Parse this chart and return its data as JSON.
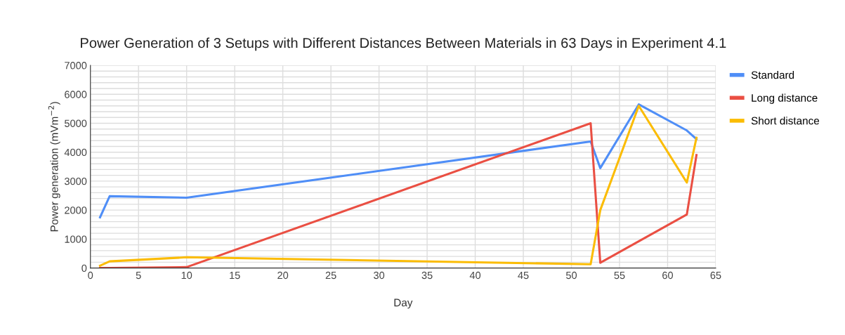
{
  "chart_data": {
    "type": "line",
    "title": "Power Generation of 3 Setups with Different Distances Between Materials in 63 Days in Experiment 4.1",
    "xlabel": "Day",
    "ylabel": "Power generation (mVm$^{−2}$)",
    "x": [
      1,
      2,
      10,
      52,
      53,
      57,
      62,
      63
    ],
    "series": [
      {
        "name": "Standard",
        "color": "#4f8ef7",
        "values": [
          1750,
          2480,
          2430,
          4370,
          3450,
          5650,
          4750,
          4450
        ]
      },
      {
        "name": "Long distance",
        "color": "#ea4f43",
        "x": [
          1,
          2,
          10,
          52,
          53,
          62,
          63
        ],
        "values": [
          0,
          0,
          30,
          5000,
          180,
          1850,
          3900
        ]
      },
      {
        "name": "Short distance",
        "color": "#fbbc04",
        "values": [
          80,
          230,
          370,
          130,
          2000,
          5600,
          2950,
          4500
        ]
      }
    ],
    "xlim": [
      0,
      65
    ],
    "xticks": [
      0,
      5,
      10,
      15,
      20,
      25,
      30,
      35,
      40,
      45,
      50,
      55,
      60,
      65
    ],
    "ylim": [
      0,
      7000
    ],
    "yticks": [
      0,
      {
        "value": 200,
        "label": null
      },
      {
        "value": 400,
        "label": null
      },
      {
        "value": 600,
        "label": null
      },
      {
        "value": 800,
        "label": null
      },
      1000,
      {
        "value": 1200,
        "label": null
      },
      {
        "value": 1400,
        "label": null
      },
      {
        "value": 1600,
        "label": null
      },
      {
        "value": 1800,
        "label": null
      },
      2000,
      {
        "value": 2200,
        "label": null
      },
      {
        "value": 2400,
        "label": null
      },
      {
        "value": 2600,
        "label": null
      },
      {
        "value": 2800,
        "label": null
      },
      3000,
      {
        "value": 3200,
        "label": null
      },
      {
        "value": 3400,
        "label": null
      },
      {
        "value": 3600,
        "label": null
      },
      {
        "value": 3800,
        "label": null
      },
      4000,
      {
        "value": 4200,
        "label": null
      },
      {
        "value": 4400,
        "label": null
      },
      {
        "value": 4600,
        "label": null
      },
      {
        "value": 4800,
        "label": null
      },
      5000,
      {
        "value": 5200,
        "label": null
      },
      {
        "value": 5400,
        "label": null
      },
      {
        "value": 5600,
        "label": null
      },
      {
        "value": 5800,
        "label": null
      },
      6000,
      {
        "value": 6200,
        "label": null
      },
      {
        "value": 6400,
        "label": null
      },
      {
        "value": 6600,
        "label": null
      },
      {
        "value": 6800,
        "label": null
      },
      7000
    ],
    "grid": true,
    "legend": "top right",
    "marker": "none",
    "line_style": "solid"
  }
}
